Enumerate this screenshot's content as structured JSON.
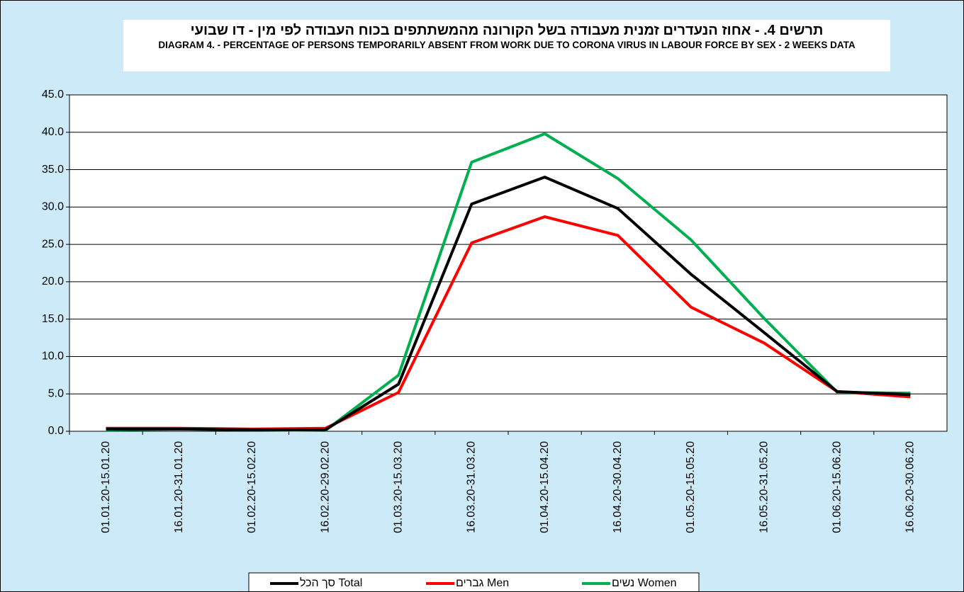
{
  "chart_data": {
    "type": "line",
    "title": "תרשים 4. - אחוז הנעדרים זמנית מעבודה בשל הקורונה מהמשתתפים בכוח העבודה לפי מין - דו שבועי",
    "subtitle": "DIAGRAM 4. - PERCENTAGE OF PERSONS TEMPORARILY ABSENT FROM WORK DUE TO CORONA VIRUS IN LABOUR FORCE BY SEX - 2 WEEKS DATA",
    "categories": [
      "01.01.20-15.01.20",
      "16.01.20-31.01.20",
      "01.02.20-15.02.20",
      "16.02.20-29.02.20",
      "01.03.20-15.03.20",
      "16.03.20-31.03.20",
      "01.04.20-15.04.20",
      "16.04.20-30.04.20",
      "01.05.20-15.05.20",
      "16.05.20-31.05.20",
      "01.06.20-15.06.20",
      "16.06.20-30.06.20"
    ],
    "series": [
      {
        "name": "סך הכל Total",
        "color": "#000000",
        "values": [
          0.3,
          0.3,
          0.2,
          0.2,
          6.3,
          30.4,
          34.0,
          29.8,
          21.0,
          13.2,
          5.3,
          4.9
        ]
      },
      {
        "name": "גברים Men",
        "color": "#ff0000",
        "values": [
          0.4,
          0.4,
          0.3,
          0.4,
          5.2,
          25.2,
          28.7,
          26.2,
          16.6,
          11.8,
          5.3,
          4.6
        ]
      },
      {
        "name": "נשים Women",
        "color": "#00b050",
        "values": [
          0.2,
          0.3,
          0.2,
          0.1,
          7.5,
          36.0,
          39.8,
          33.8,
          25.6,
          15.1,
          5.2,
          5.1
        ]
      }
    ],
    "ylim": [
      0,
      45
    ],
    "yticks": [
      {
        "value": 0,
        "label": "0.0"
      },
      {
        "value": 5,
        "label": "5.0"
      },
      {
        "value": 10,
        "label": "10.0"
      },
      {
        "value": 15,
        "label": "15.0"
      },
      {
        "value": 20,
        "label": "20.0"
      },
      {
        "value": 25,
        "label": "25.0"
      },
      {
        "value": 30,
        "label": "30.0"
      },
      {
        "value": 35,
        "label": "35.0"
      },
      {
        "value": 40,
        "label": "40.0"
      },
      {
        "value": 45,
        "label": "45.0"
      }
    ],
    "grid": true,
    "legend": "bottom"
  }
}
